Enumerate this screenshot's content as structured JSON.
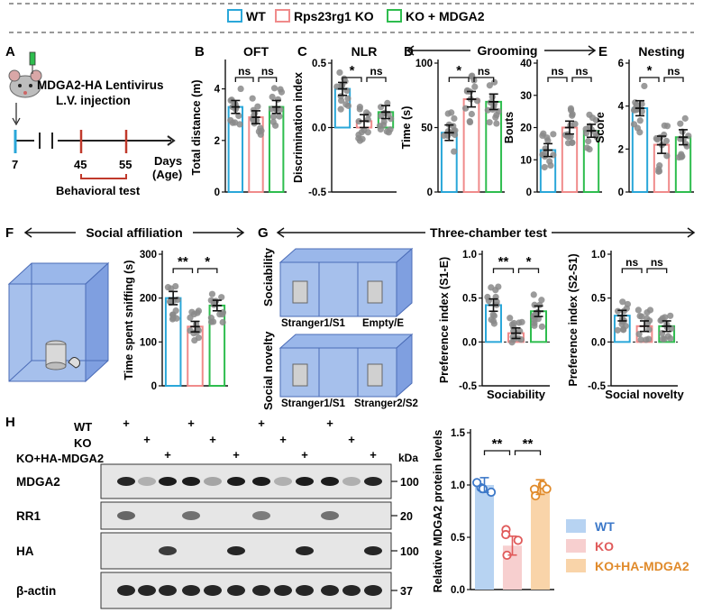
{
  "legend": {
    "items": [
      {
        "label": "WT",
        "color": "#2aa7d9"
      },
      {
        "label": "Rps23rg1 KO",
        "color": "#f08b8b"
      },
      {
        "label": "KO + MDGA2",
        "color": "#2ebd4e"
      }
    ]
  },
  "colors": {
    "wt": "#2aa7d9",
    "ko": "#f08b8b",
    "mdga": "#2ebd4e",
    "dot": "#8a8a8a",
    "box": "#a6c0ec"
  },
  "panelA": {
    "letter": "A",
    "title_line1": "MDGA2-HA Lentivirus",
    "title_line2": "L.V. injection",
    "day_start": "7",
    "day_45": "45",
    "day_55": "55",
    "days_line1": "Days",
    "days_line2": "(Age)",
    "behavioral_label": "Behavioral test"
  },
  "letters": {
    "B": "B",
    "C": "C",
    "D": "D",
    "E": "E",
    "F": "F",
    "G": "G",
    "H": "H"
  },
  "headers": {
    "grooming": "Grooming",
    "social_affiliation": "Social affiliation",
    "three_chamber": "Three-chamber test"
  },
  "sig": {
    "ns": "ns",
    "star": "*",
    "dstar": "**"
  },
  "chart_data": [
    {
      "id": "B",
      "type": "bar",
      "title": "OFT",
      "ylabel": "Total distance (m)",
      "ylim": [
        0,
        5
      ],
      "yticks": [
        "0",
        "2",
        "4"
      ],
      "categories": [
        "WT",
        "Rps23rg1 KO",
        "KO + MDGA2"
      ],
      "values": [
        3.3,
        2.9,
        3.3
      ],
      "errors": [
        0.25,
        0.25,
        0.25
      ],
      "significance": [
        "ns",
        "ns"
      ]
    },
    {
      "id": "C",
      "type": "bar",
      "title": "NLR",
      "ylabel": "Discrimination index",
      "ylim": [
        -0.5,
        0.5
      ],
      "yticks": [
        "-0.5",
        "0.0",
        "0.5"
      ],
      "categories": [
        "WT",
        "Rps23rg1 KO",
        "KO + MDGA2"
      ],
      "values": [
        0.3,
        0.05,
        0.12
      ],
      "errors": [
        0.05,
        0.05,
        0.05
      ],
      "significance": [
        "*",
        "ns"
      ]
    },
    {
      "id": "D1",
      "type": "bar",
      "title": "",
      "ylabel": "Time (s)",
      "ylim": [
        0,
        100
      ],
      "yticks": [
        "0",
        "50",
        "100"
      ],
      "categories": [
        "WT",
        "Rps23rg1 KO",
        "KO + MDGA2"
      ],
      "values": [
        46,
        72,
        70
      ],
      "errors": [
        6,
        6,
        6
      ],
      "significance": [
        "*",
        "ns"
      ]
    },
    {
      "id": "D2",
      "type": "bar",
      "title": "",
      "ylabel": "Bouts",
      "ylim": [
        0,
        40
      ],
      "yticks": [
        "0",
        "10",
        "20",
        "30",
        "40"
      ],
      "categories": [
        "WT",
        "Rps23rg1 KO",
        "KO + MDGA2"
      ],
      "values": [
        13,
        20,
        19
      ],
      "errors": [
        2,
        2,
        2
      ],
      "significance": [
        "ns",
        "ns"
      ]
    },
    {
      "id": "E",
      "type": "bar",
      "title": "Nesting",
      "ylabel": "Score",
      "ylim": [
        0,
        6
      ],
      "yticks": [
        "0",
        "2",
        "4",
        "6"
      ],
      "categories": [
        "WT",
        "Rps23rg1 KO",
        "KO + MDGA2"
      ],
      "values": [
        3.9,
        2.2,
        2.55
      ],
      "errors": [
        0.35,
        0.4,
        0.35
      ],
      "significance": [
        "*",
        "ns"
      ]
    },
    {
      "id": "F",
      "type": "bar",
      "title": "",
      "ylabel": "Time spent sniffing (s)",
      "ylim": [
        0,
        300
      ],
      "yticks": [
        "0",
        "100",
        "200",
        "300"
      ],
      "categories": [
        "WT",
        "Rps23rg1 KO",
        "KO + MDGA2"
      ],
      "values": [
        200,
        135,
        183
      ],
      "errors": [
        15,
        12,
        12
      ],
      "significance": [
        "**",
        "*"
      ]
    },
    {
      "id": "G1",
      "type": "bar",
      "title": "",
      "xlabel": "Sociability",
      "ylabel": "Preference index (S1-E)",
      "ylim": [
        -0.5,
        1.0
      ],
      "yticks": [
        "-0.5",
        "0.0",
        "0.5",
        "1.0"
      ],
      "categories": [
        "WT",
        "Rps23rg1 KO",
        "KO + MDGA2"
      ],
      "values": [
        0.42,
        0.1,
        0.35
      ],
      "errors": [
        0.07,
        0.06,
        0.06
      ],
      "significance": [
        "**",
        "*"
      ]
    },
    {
      "id": "G2",
      "type": "bar",
      "title": "",
      "xlabel": "Social novelty",
      "ylabel": "Preference index (S2-S1)",
      "ylim": [
        -0.5,
        1.0
      ],
      "yticks": [
        "-0.5",
        "0.0",
        "0.5",
        "1.0"
      ],
      "categories": [
        "WT",
        "Rps23rg1 KO",
        "KO + MDGA2"
      ],
      "values": [
        0.3,
        0.18,
        0.18
      ],
      "errors": [
        0.06,
        0.06,
        0.06
      ],
      "significance": [
        "ns",
        "ns"
      ]
    },
    {
      "id": "H",
      "type": "bar",
      "title": "",
      "ylabel": "Relative MDGA2 protein levels",
      "ylim": [
        0,
        1.5
      ],
      "yticks": [
        "0.0",
        "0.5",
        "1.0",
        "1.5"
      ],
      "categories": [
        "WT",
        "KO",
        "KO+HA-MDGA2"
      ],
      "values": [
        1.0,
        0.42,
        0.98
      ],
      "errors": [
        0.07,
        0.09,
        0.07
      ],
      "significance": [
        "**",
        "**"
      ]
    }
  ],
  "panelG": {
    "sociability_label": "Sociability",
    "social_novelty_label": "Social novelty",
    "stranger1_s1": "Stranger1/S1",
    "empty_e": "Empty/E",
    "stranger1_s1_b": "Stranger1/S1",
    "stranger2_s2": "Stranger2/S2"
  },
  "panelH": {
    "row_wt": "WT",
    "row_ko": "KO",
    "row_koha": "KO+HA-MDGA2",
    "plus": "+",
    "kda": "kDa",
    "blots": [
      {
        "label": "MDGA2",
        "mw": "100"
      },
      {
        "label": "RR1",
        "mw": "20"
      },
      {
        "label": "HA",
        "mw": "100"
      },
      {
        "label": "β-actin",
        "mw": "37"
      }
    ],
    "legend": [
      {
        "label": "WT",
        "color": "#b7d3f2"
      },
      {
        "label": "KO",
        "color": "#f7cfcf"
      },
      {
        "label": "KO+HA-MDGA2",
        "color": "#f9d4a9"
      }
    ]
  }
}
